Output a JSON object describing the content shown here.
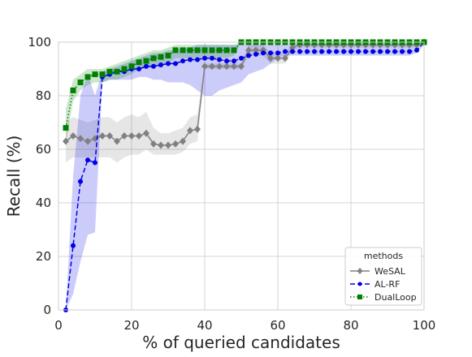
{
  "chart_data": {
    "type": "line",
    "xlabel": "% of queried candidates",
    "ylabel": "Recall (%)",
    "xlim": [
      0,
      100
    ],
    "ylim": [
      0,
      100
    ],
    "xticks": [
      0,
      20,
      40,
      60,
      80,
      100
    ],
    "yticks": [
      0,
      20,
      40,
      60,
      80,
      100
    ],
    "grid": true,
    "legend": {
      "title": "methods",
      "placement": "lower-right"
    },
    "series": [
      {
        "name": "WeSAL",
        "color": "#808080",
        "line_style": "solid",
        "marker": "diamond",
        "x": [
          2,
          4,
          6,
          8,
          10,
          12,
          14,
          16,
          18,
          20,
          22,
          24,
          26,
          28,
          30,
          32,
          34,
          36,
          38,
          40,
          42,
          44,
          46,
          48,
          50,
          52,
          54,
          56,
          58,
          60,
          62,
          64,
          66,
          68,
          70,
          72,
          74,
          76,
          78,
          80,
          82,
          84,
          86,
          88,
          90,
          92,
          94,
          96,
          98,
          100
        ],
        "y": [
          63,
          65,
          64,
          63,
          64,
          65,
          65,
          63,
          65,
          65,
          65,
          66,
          62,
          61.5,
          61.5,
          62,
          63,
          67,
          67.5,
          91,
          91,
          91,
          91,
          91,
          91,
          97,
          97,
          97,
          94,
          94,
          94,
          98,
          99,
          99,
          99,
          99,
          99,
          99,
          99,
          99,
          99,
          99,
          99,
          99,
          99,
          99,
          99,
          99,
          99,
          100
        ],
        "band_low": [
          55,
          57,
          57,
          57,
          57,
          57,
          57,
          55,
          57,
          58,
          58,
          60,
          58,
          58,
          58,
          58,
          59,
          62,
          63,
          90,
          90,
          90,
          90,
          90,
          90,
          95,
          95,
          95,
          92,
          92,
          92,
          97,
          98,
          98,
          98,
          98,
          98,
          98,
          98,
          98,
          98,
          98,
          98,
          98,
          98,
          98,
          98,
          98,
          98,
          99
        ],
        "band_high": [
          70,
          72,
          71,
          70,
          71,
          72,
          72,
          70,
          72,
          73,
          72,
          74,
          68,
          66,
          66,
          67,
          68,
          72,
          73,
          92,
          92,
          92,
          92,
          92,
          92,
          99,
          99,
          99,
          96,
          96,
          96,
          99.5,
          100,
          100,
          100,
          100,
          100,
          100,
          100,
          100,
          100,
          100,
          100,
          100,
          100,
          100,
          100,
          100,
          100,
          100
        ]
      },
      {
        "name": "AL-RF",
        "color": "#0000e6",
        "line_style": "dashed",
        "marker": "circle",
        "x": [
          2,
          4,
          6,
          8,
          10,
          12,
          14,
          16,
          18,
          20,
          22,
          24,
          26,
          28,
          30,
          32,
          34,
          36,
          38,
          40,
          42,
          44,
          46,
          48,
          50,
          52,
          54,
          56,
          58,
          60,
          62,
          64,
          66,
          68,
          70,
          72,
          74,
          76,
          78,
          80,
          82,
          84,
          86,
          88,
          90,
          92,
          94,
          96,
          98,
          100
        ],
        "y": [
          0,
          24,
          48,
          56,
          55,
          87,
          88,
          89,
          89,
          90,
          90,
          91,
          91,
          91.5,
          92,
          92,
          93,
          93.5,
          93.5,
          94,
          94,
          93.5,
          93,
          93,
          94,
          95,
          95.5,
          96,
          96,
          96,
          96.5,
          96.5,
          96.5,
          96.5,
          96.5,
          96.5,
          96.5,
          96.5,
          96.5,
          96.5,
          96.5,
          96.5,
          96.5,
          96.5,
          96.5,
          96.5,
          96.5,
          96.5,
          97,
          100
        ],
        "band_low": [
          0,
          6,
          18,
          28,
          29,
          85,
          86,
          86,
          86,
          86,
          87,
          87,
          86,
          86,
          85,
          85,
          85,
          84,
          82,
          80,
          80,
          82,
          83,
          84,
          85,
          88,
          89,
          90,
          92,
          94,
          95,
          95,
          95,
          95,
          95,
          95,
          95,
          95,
          95,
          95,
          95,
          95,
          95,
          95,
          95,
          95,
          95,
          95,
          96,
          99
        ],
        "band_high": [
          0,
          50,
          80,
          88,
          80,
          89,
          90,
          91,
          92,
          93,
          94,
          95,
          96,
          96,
          97,
          97,
          98,
          98,
          99,
          99,
          99,
          99,
          99,
          99,
          99,
          99,
          99,
          99,
          99,
          99,
          99,
          99,
          99,
          99,
          99,
          99,
          99,
          99,
          99,
          99,
          99,
          99,
          99,
          99,
          99,
          99,
          99,
          99,
          99,
          100
        ]
      },
      {
        "name": "DualLoop",
        "color": "#008000",
        "line_style": "dotted",
        "marker": "square",
        "x": [
          2,
          4,
          6,
          8,
          10,
          12,
          14,
          16,
          18,
          20,
          22,
          24,
          26,
          28,
          30,
          32,
          34,
          36,
          38,
          40,
          42,
          44,
          46,
          48,
          50,
          52,
          54,
          56,
          58,
          60,
          62,
          64,
          66,
          68,
          70,
          72,
          74,
          76,
          78,
          80,
          82,
          84,
          86,
          88,
          90,
          92,
          94,
          96,
          98,
          100
        ],
        "y": [
          68,
          82,
          85,
          87,
          88,
          88,
          89,
          89,
          90,
          91,
          92.5,
          93,
          94,
          94.5,
          95,
          97,
          97,
          97,
          97,
          97,
          97,
          97,
          97,
          97,
          100,
          100,
          100,
          100,
          100,
          100,
          100,
          100,
          100,
          100,
          100,
          100,
          100,
          100,
          100,
          100,
          100,
          100,
          100,
          100,
          100,
          100,
          100,
          100,
          100,
          100
        ],
        "band_low": [
          62,
          78,
          82,
          84,
          85,
          85,
          86,
          86,
          87,
          88,
          90,
          90,
          91,
          91,
          92,
          94,
          94,
          94,
          94,
          94,
          94,
          94,
          94,
          95,
          100,
          100,
          100,
          100,
          100,
          100,
          100,
          100,
          100,
          100,
          100,
          100,
          100,
          100,
          100,
          100,
          100,
          100,
          100,
          100,
          100,
          100,
          100,
          100,
          100,
          100
        ],
        "band_high": [
          75,
          86,
          88,
          90,
          90,
          90,
          91,
          92,
          93,
          94,
          95,
          96,
          97,
          97,
          98,
          99,
          99,
          99,
          99,
          99,
          99,
          99,
          99,
          99,
          100,
          100,
          100,
          100,
          100,
          100,
          100,
          100,
          100,
          100,
          100,
          100,
          100,
          100,
          100,
          100,
          100,
          100,
          100,
          100,
          100,
          100,
          100,
          100,
          100,
          100
        ]
      }
    ]
  }
}
